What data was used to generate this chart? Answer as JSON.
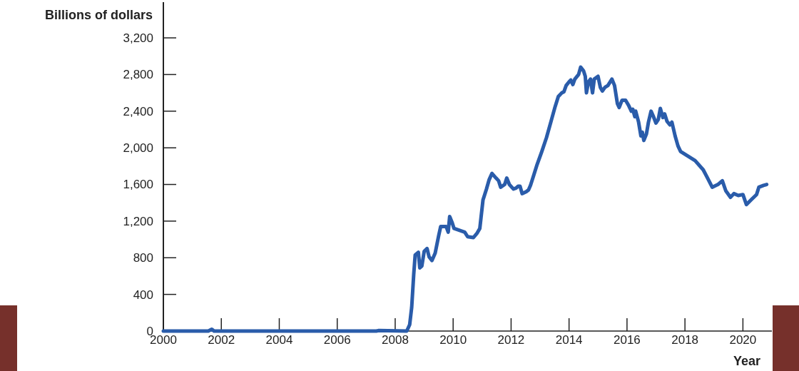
{
  "chart_data": {
    "type": "line",
    "ylabel": "Billions of dollars",
    "xlabel": "Year",
    "xlim": [
      2000,
      2021
    ],
    "xticks": [
      2000,
      2002,
      2004,
      2006,
      2008,
      2010,
      2012,
      2014,
      2016,
      2018,
      2020
    ],
    "ylim": [
      0,
      3590
    ],
    "yticks": [
      {
        "value": 0,
        "label": "0"
      },
      {
        "value": 400,
        "label": "400"
      },
      {
        "value": 800,
        "label": "800"
      },
      {
        "value": 1200,
        "label": "1,200"
      },
      {
        "value": 1600,
        "label": "1,600"
      },
      {
        "value": 2000,
        "label": "2,000"
      },
      {
        "value": 2400,
        "label": "2,400"
      },
      {
        "value": 2800,
        "label": "2,800"
      },
      {
        "value": 3200,
        "label": "3,200"
      }
    ],
    "grid": false,
    "marker": "none",
    "line_style": "solid",
    "series": [
      {
        "color": "#2a5caa",
        "x": [
          2000,
          2001.55,
          2001.67,
          2001.75,
          2007.35,
          2007.42,
          2008.4,
          2008.5,
          2008.57,
          2008.64,
          2008.69,
          2008.8,
          2008.85,
          2008.92,
          2009.0,
          2009.1,
          2009.17,
          2009.27,
          2009.38,
          2009.5,
          2009.57,
          2009.76,
          2009.83,
          2009.88,
          2009.97,
          2010.03,
          2010.31,
          2010.4,
          2010.5,
          2010.7,
          2010.83,
          2010.92,
          2011.03,
          2011.15,
          2011.24,
          2011.34,
          2011.48,
          2011.57,
          2011.64,
          2011.78,
          2011.85,
          2011.94,
          2012.08,
          2012.17,
          2012.24,
          2012.31,
          2012.38,
          2012.52,
          2012.6,
          2012.67,
          2012.78,
          2012.9,
          2013.06,
          2013.22,
          2013.38,
          2013.52,
          2013.63,
          2013.75,
          2013.82,
          2013.9,
          2014.0,
          2014.06,
          2014.13,
          2014.2,
          2014.33,
          2014.4,
          2014.5,
          2014.56,
          2014.6,
          2014.67,
          2014.74,
          2014.81,
          2014.87,
          2015.0,
          2015.08,
          2015.15,
          2015.24,
          2015.34,
          2015.48,
          2015.57,
          2015.67,
          2015.73,
          2015.83,
          2015.95,
          2016.06,
          2016.15,
          2016.2,
          2016.27,
          2016.3,
          2016.4,
          2016.48,
          2016.53,
          2016.58,
          2016.67,
          2016.74,
          2016.83,
          2016.9,
          2017.0,
          2017.08,
          2017.15,
          2017.24,
          2017.3,
          2017.38,
          2017.48,
          2017.55,
          2017.66,
          2017.76,
          2017.85,
          2018.35,
          2018.63,
          2018.78,
          2018.94,
          2019.14,
          2019.29,
          2019.41,
          2019.57,
          2019.69,
          2019.84,
          2020.0,
          2020.12,
          2020.31,
          2020.47,
          2020.55,
          2020.71,
          2020.82
        ],
        "values": [
          0,
          0,
          20,
          0,
          0,
          5,
          0,
          70,
          260,
          620,
          830,
          860,
          690,
          710,
          870,
          900,
          810,
          770,
          850,
          1040,
          1140,
          1140,
          1080,
          1250,
          1180,
          1120,
          1090,
          1080,
          1030,
          1020,
          1070,
          1120,
          1430,
          1550,
          1650,
          1720,
          1670,
          1640,
          1570,
          1600,
          1670,
          1600,
          1550,
          1560,
          1580,
          1580,
          1500,
          1520,
          1540,
          1590,
          1700,
          1820,
          1960,
          2110,
          2290,
          2450,
          2560,
          2600,
          2610,
          2680,
          2720,
          2740,
          2690,
          2750,
          2800,
          2880,
          2840,
          2780,
          2600,
          2720,
          2750,
          2600,
          2750,
          2780,
          2660,
          2620,
          2660,
          2680,
          2750,
          2680,
          2480,
          2440,
          2520,
          2520,
          2460,
          2400,
          2420,
          2340,
          2400,
          2280,
          2130,
          2170,
          2080,
          2150,
          2280,
          2400,
          2350,
          2270,
          2310,
          2430,
          2330,
          2370,
          2290,
          2250,
          2280,
          2130,
          2020,
          1960,
          1860,
          1760,
          1670,
          1570,
          1600,
          1640,
          1530,
          1460,
          1500,
          1480,
          1490,
          1380,
          1440,
          1490,
          1570,
          1590,
          1600
        ]
      }
    ]
  }
}
